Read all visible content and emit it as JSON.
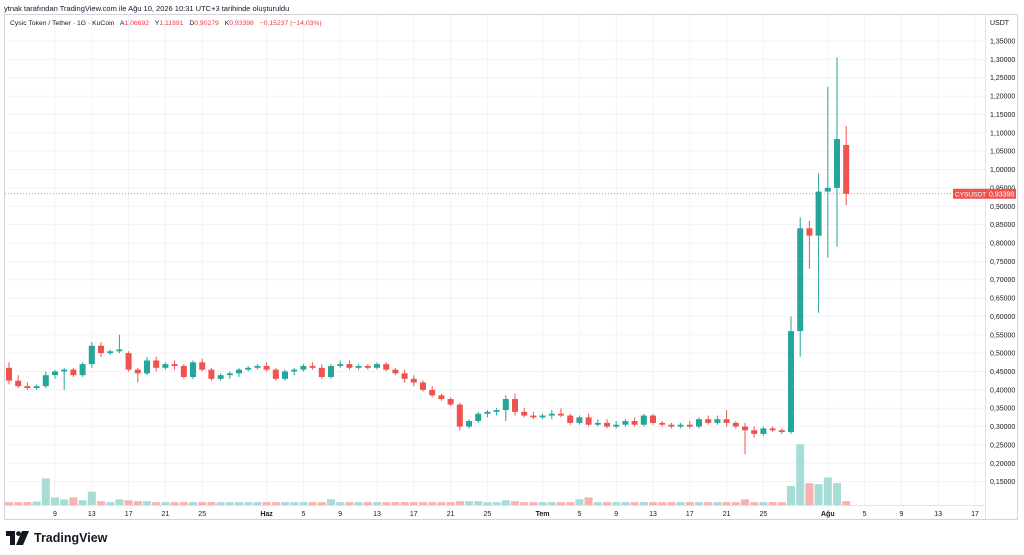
{
  "header": {
    "text": "ytnak tarafından TradingView.com ile Ağu 10, 2026 10:31 UTC+3 tarihinde oluşturuldu"
  },
  "legend": {
    "symbol": "Cysic Token / Tether · 1G · KuCoin",
    "open_key": "A",
    "open_val": "1,06692",
    "high_key": "Y",
    "high_val": "1,11891",
    "low_key": "D",
    "low_val": "0,90279",
    "close_key": "K",
    "close_val": "0,93398",
    "change": "−0,15237 (−14,03%)"
  },
  "axis": {
    "currency": "USDT"
  },
  "price_tag": {
    "symbol": "CYSUSDT",
    "value": "0,93398"
  },
  "logo": {
    "text": "TradingView"
  },
  "colors": {
    "up": "#26a69a",
    "down": "#ef5350",
    "up_volume": "#a7dcd7",
    "down_volume": "#f7b2b0",
    "grid": "#f0f3fa"
  },
  "chart_data": {
    "type": "candlestick",
    "symbol": "CYSUSDT",
    "interval": "1G",
    "exchange": "KuCoin",
    "y_axis": {
      "min": 0.1,
      "max": 1.38,
      "ticks": [
        "0,15000",
        "0,20000",
        "0,25000",
        "0,30000",
        "0,35000",
        "0,40000",
        "0,45000",
        "0,50000",
        "0,55000",
        "0,60000",
        "0,65000",
        "0,70000",
        "0,75000",
        "0,80000",
        "0,85000",
        "0,90000",
        "0,95000",
        "1,00000",
        "1,05000",
        "1,10000",
        "1,15000",
        "1,20000",
        "1,25000",
        "1,30000",
        "1,35000"
      ],
      "tick_values": [
        0.15,
        0.2,
        0.25,
        0.3,
        0.35,
        0.4,
        0.45,
        0.5,
        0.55,
        0.6,
        0.65,
        0.7,
        0.75,
        0.8,
        0.85,
        0.9,
        0.95,
        1.0,
        1.05,
        1.1,
        1.15,
        1.2,
        1.25,
        1.3,
        1.35
      ]
    },
    "x_axis": {
      "labels": [
        {
          "label": "9",
          "index": 5
        },
        {
          "label": "13",
          "index": 9
        },
        {
          "label": "17",
          "index": 13
        },
        {
          "label": "21",
          "index": 17
        },
        {
          "label": "25",
          "index": 21
        },
        {
          "label": "Haz",
          "index": 28
        },
        {
          "label": "5",
          "index": 32
        },
        {
          "label": "9",
          "index": 36
        },
        {
          "label": "13",
          "index": 40
        },
        {
          "label": "17",
          "index": 44
        },
        {
          "label": "21",
          "index": 48
        },
        {
          "label": "25",
          "index": 52
        },
        {
          "label": "Tem",
          "index": 58
        },
        {
          "label": "5",
          "index": 62
        },
        {
          "label": "9",
          "index": 66
        },
        {
          "label": "13",
          "index": 70
        },
        {
          "label": "17",
          "index": 74
        },
        {
          "label": "21",
          "index": 78
        },
        {
          "label": "25",
          "index": 82
        },
        {
          "label": "Ağu",
          "index": 89
        },
        {
          "label": "5",
          "index": 93
        },
        {
          "label": "9",
          "index": 97
        },
        {
          "label": "13",
          "index": 101
        },
        {
          "label": "17",
          "index": 105
        }
      ]
    },
    "last_price": 0.93398,
    "candles": [
      {
        "o": 0.46,
        "h": 0.475,
        "l": 0.415,
        "c": 0.425,
        "v": 0.3
      },
      {
        "o": 0.425,
        "h": 0.44,
        "l": 0.405,
        "c": 0.41,
        "v": 0.3
      },
      {
        "o": 0.41,
        "h": 0.42,
        "l": 0.4,
        "c": 0.405,
        "v": 0.3
      },
      {
        "o": 0.405,
        "h": 0.415,
        "l": 0.4,
        "c": 0.41,
        "v": 0.35
      },
      {
        "o": 0.41,
        "h": 0.45,
        "l": 0.405,
        "c": 0.44,
        "v": 2.8
      },
      {
        "o": 0.44,
        "h": 0.455,
        "l": 0.43,
        "c": 0.45,
        "v": 0.8
      },
      {
        "o": 0.45,
        "h": 0.46,
        "l": 0.4,
        "c": 0.455,
        "v": 0.6
      },
      {
        "o": 0.455,
        "h": 0.46,
        "l": 0.435,
        "c": 0.44,
        "v": 0.8
      },
      {
        "o": 0.44,
        "h": 0.475,
        "l": 0.435,
        "c": 0.47,
        "v": 0.5
      },
      {
        "o": 0.47,
        "h": 0.53,
        "l": 0.46,
        "c": 0.52,
        "v": 1.4
      },
      {
        "o": 0.52,
        "h": 0.53,
        "l": 0.49,
        "c": 0.5,
        "v": 0.4
      },
      {
        "o": 0.5,
        "h": 0.51,
        "l": 0.495,
        "c": 0.505,
        "v": 0.3
      },
      {
        "o": 0.505,
        "h": 0.55,
        "l": 0.5,
        "c": 0.51,
        "v": 0.6
      },
      {
        "o": 0.5,
        "h": 0.505,
        "l": 0.45,
        "c": 0.455,
        "v": 0.5
      },
      {
        "o": 0.455,
        "h": 0.46,
        "l": 0.42,
        "c": 0.445,
        "v": 0.4
      },
      {
        "o": 0.445,
        "h": 0.49,
        "l": 0.44,
        "c": 0.48,
        "v": 0.4
      },
      {
        "o": 0.48,
        "h": 0.49,
        "l": 0.45,
        "c": 0.46,
        "v": 0.3
      },
      {
        "o": 0.46,
        "h": 0.475,
        "l": 0.455,
        "c": 0.47,
        "v": 0.3
      },
      {
        "o": 0.47,
        "h": 0.48,
        "l": 0.455,
        "c": 0.465,
        "v": 0.3
      },
      {
        "o": 0.465,
        "h": 0.47,
        "l": 0.43,
        "c": 0.435,
        "v": 0.3
      },
      {
        "o": 0.435,
        "h": 0.48,
        "l": 0.43,
        "c": 0.475,
        "v": 0.3
      },
      {
        "o": 0.475,
        "h": 0.485,
        "l": 0.45,
        "c": 0.455,
        "v": 0.3
      },
      {
        "o": 0.455,
        "h": 0.46,
        "l": 0.425,
        "c": 0.43,
        "v": 0.3
      },
      {
        "o": 0.43,
        "h": 0.445,
        "l": 0.425,
        "c": 0.44,
        "v": 0.3
      },
      {
        "o": 0.44,
        "h": 0.45,
        "l": 0.43,
        "c": 0.445,
        "v": 0.3
      },
      {
        "o": 0.445,
        "h": 0.46,
        "l": 0.435,
        "c": 0.455,
        "v": 0.3
      },
      {
        "o": 0.455,
        "h": 0.465,
        "l": 0.45,
        "c": 0.46,
        "v": 0.3
      },
      {
        "o": 0.46,
        "h": 0.47,
        "l": 0.455,
        "c": 0.465,
        "v": 0.3
      },
      {
        "o": 0.465,
        "h": 0.475,
        "l": 0.45,
        "c": 0.455,
        "v": 0.3
      },
      {
        "o": 0.455,
        "h": 0.46,
        "l": 0.425,
        "c": 0.43,
        "v": 0.3
      },
      {
        "o": 0.43,
        "h": 0.455,
        "l": 0.425,
        "c": 0.45,
        "v": 0.3
      },
      {
        "o": 0.45,
        "h": 0.46,
        "l": 0.44,
        "c": 0.455,
        "v": 0.3
      },
      {
        "o": 0.455,
        "h": 0.47,
        "l": 0.45,
        "c": 0.465,
        "v": 0.3
      },
      {
        "o": 0.465,
        "h": 0.475,
        "l": 0.455,
        "c": 0.46,
        "v": 0.3
      },
      {
        "o": 0.46,
        "h": 0.47,
        "l": 0.43,
        "c": 0.435,
        "v": 0.3
      },
      {
        "o": 0.435,
        "h": 0.47,
        "l": 0.43,
        "c": 0.465,
        "v": 0.6
      },
      {
        "o": 0.465,
        "h": 0.48,
        "l": 0.46,
        "c": 0.47,
        "v": 0.3
      },
      {
        "o": 0.47,
        "h": 0.48,
        "l": 0.455,
        "c": 0.46,
        "v": 0.3
      },
      {
        "o": 0.46,
        "h": 0.47,
        "l": 0.455,
        "c": 0.465,
        "v": 0.3
      },
      {
        "o": 0.465,
        "h": 0.47,
        "l": 0.455,
        "c": 0.46,
        "v": 0.3
      },
      {
        "o": 0.46,
        "h": 0.475,
        "l": 0.455,
        "c": 0.47,
        "v": 0.3
      },
      {
        "o": 0.47,
        "h": 0.475,
        "l": 0.45,
        "c": 0.455,
        "v": 0.3
      },
      {
        "o": 0.455,
        "h": 0.46,
        "l": 0.44,
        "c": 0.445,
        "v": 0.3
      },
      {
        "o": 0.445,
        "h": 0.455,
        "l": 0.42,
        "c": 0.43,
        "v": 0.3
      },
      {
        "o": 0.43,
        "h": 0.44,
        "l": 0.41,
        "c": 0.42,
        "v": 0.3
      },
      {
        "o": 0.42,
        "h": 0.425,
        "l": 0.395,
        "c": 0.4,
        "v": 0.3
      },
      {
        "o": 0.4,
        "h": 0.41,
        "l": 0.38,
        "c": 0.385,
        "v": 0.3
      },
      {
        "o": 0.385,
        "h": 0.39,
        "l": 0.37,
        "c": 0.375,
        "v": 0.3
      },
      {
        "o": 0.375,
        "h": 0.38,
        "l": 0.355,
        "c": 0.36,
        "v": 0.3
      },
      {
        "o": 0.36,
        "h": 0.365,
        "l": 0.29,
        "c": 0.3,
        "v": 0.4
      },
      {
        "o": 0.3,
        "h": 0.32,
        "l": 0.295,
        "c": 0.315,
        "v": 0.4
      },
      {
        "o": 0.315,
        "h": 0.34,
        "l": 0.31,
        "c": 0.335,
        "v": 0.4
      },
      {
        "o": 0.335,
        "h": 0.345,
        "l": 0.325,
        "c": 0.34,
        "v": 0.3
      },
      {
        "o": 0.34,
        "h": 0.35,
        "l": 0.33,
        "c": 0.345,
        "v": 0.3
      },
      {
        "o": 0.345,
        "h": 0.385,
        "l": 0.315,
        "c": 0.375,
        "v": 0.5
      },
      {
        "o": 0.375,
        "h": 0.39,
        "l": 0.33,
        "c": 0.34,
        "v": 0.4
      },
      {
        "o": 0.34,
        "h": 0.35,
        "l": 0.325,
        "c": 0.33,
        "v": 0.3
      },
      {
        "o": 0.33,
        "h": 0.34,
        "l": 0.32,
        "c": 0.325,
        "v": 0.3
      },
      {
        "o": 0.325,
        "h": 0.335,
        "l": 0.32,
        "c": 0.33,
        "v": 0.3
      },
      {
        "o": 0.33,
        "h": 0.345,
        "l": 0.32,
        "c": 0.335,
        "v": 0.3
      },
      {
        "o": 0.335,
        "h": 0.35,
        "l": 0.325,
        "c": 0.33,
        "v": 0.3
      },
      {
        "o": 0.33,
        "h": 0.335,
        "l": 0.305,
        "c": 0.31,
        "v": 0.3
      },
      {
        "o": 0.31,
        "h": 0.33,
        "l": 0.305,
        "c": 0.325,
        "v": 0.6
      },
      {
        "o": 0.325,
        "h": 0.335,
        "l": 0.3,
        "c": 0.305,
        "v": 0.8
      },
      {
        "o": 0.305,
        "h": 0.32,
        "l": 0.3,
        "c": 0.31,
        "v": 0.3
      },
      {
        "o": 0.31,
        "h": 0.32,
        "l": 0.295,
        "c": 0.3,
        "v": 0.3
      },
      {
        "o": 0.3,
        "h": 0.315,
        "l": 0.295,
        "c": 0.305,
        "v": 0.3
      },
      {
        "o": 0.305,
        "h": 0.32,
        "l": 0.3,
        "c": 0.315,
        "v": 0.3
      },
      {
        "o": 0.315,
        "h": 0.325,
        "l": 0.3,
        "c": 0.305,
        "v": 0.3
      },
      {
        "o": 0.305,
        "h": 0.335,
        "l": 0.3,
        "c": 0.33,
        "v": 0.3
      },
      {
        "o": 0.33,
        "h": 0.335,
        "l": 0.305,
        "c": 0.31,
        "v": 0.3
      },
      {
        "o": 0.31,
        "h": 0.315,
        "l": 0.3,
        "c": 0.305,
        "v": 0.3
      },
      {
        "o": 0.305,
        "h": 0.31,
        "l": 0.295,
        "c": 0.3,
        "v": 0.3
      },
      {
        "o": 0.3,
        "h": 0.31,
        "l": 0.295,
        "c": 0.305,
        "v": 0.3
      },
      {
        "o": 0.305,
        "h": 0.315,
        "l": 0.295,
        "c": 0.3,
        "v": 0.3
      },
      {
        "o": 0.3,
        "h": 0.325,
        "l": 0.295,
        "c": 0.32,
        "v": 0.3
      },
      {
        "o": 0.32,
        "h": 0.33,
        "l": 0.305,
        "c": 0.31,
        "v": 0.3
      },
      {
        "o": 0.31,
        "h": 0.33,
        "l": 0.305,
        "c": 0.32,
        "v": 0.3
      },
      {
        "o": 0.32,
        "h": 0.345,
        "l": 0.3,
        "c": 0.31,
        "v": 0.3
      },
      {
        "o": 0.31,
        "h": 0.315,
        "l": 0.295,
        "c": 0.3,
        "v": 0.3
      },
      {
        "o": 0.3,
        "h": 0.31,
        "l": 0.225,
        "c": 0.29,
        "v": 0.6
      },
      {
        "o": 0.29,
        "h": 0.3,
        "l": 0.27,
        "c": 0.28,
        "v": 0.3
      },
      {
        "o": 0.28,
        "h": 0.3,
        "l": 0.275,
        "c": 0.295,
        "v": 0.3
      },
      {
        "o": 0.295,
        "h": 0.3,
        "l": 0.285,
        "c": 0.29,
        "v": 0.3
      },
      {
        "o": 0.29,
        "h": 0.295,
        "l": 0.28,
        "c": 0.285,
        "v": 0.3
      },
      {
        "o": 0.285,
        "h": 0.6,
        "l": 0.28,
        "c": 0.56,
        "v": 2.0
      },
      {
        "o": 0.56,
        "h": 0.87,
        "l": 0.49,
        "c": 0.84,
        "v": 6.4
      },
      {
        "o": 0.84,
        "h": 0.86,
        "l": 0.73,
        "c": 0.82,
        "v": 2.3
      },
      {
        "o": 0.82,
        "h": 0.99,
        "l": 0.61,
        "c": 0.94,
        "v": 2.2
      },
      {
        "o": 0.94,
        "h": 1.225,
        "l": 0.76,
        "c": 0.95,
        "v": 2.9
      },
      {
        "o": 0.95,
        "h": 1.305,
        "l": 0.79,
        "c": 1.083,
        "v": 2.3
      },
      {
        "o": 1.06692,
        "h": 1.11891,
        "l": 0.90279,
        "c": 0.93398,
        "v": 0.4
      }
    ]
  }
}
